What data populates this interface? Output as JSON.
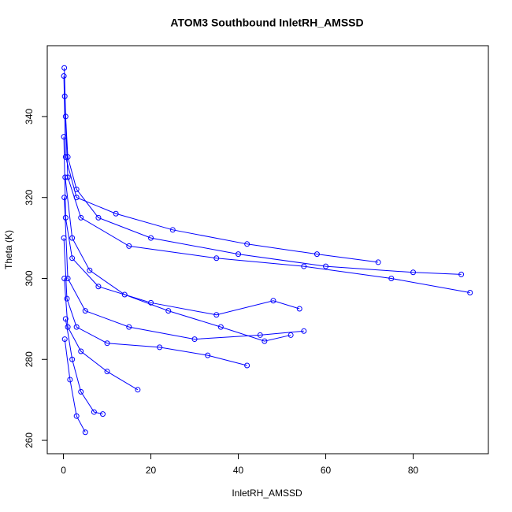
{
  "chart_data": {
    "type": "scatter-line",
    "title": "ATOM3 Southbound InletRH_AMSSD",
    "x_label": "InletRH_AMSSD",
    "y_label": "Theta (K)",
    "xlim": [
      -3.7,
      97.2
    ],
    "ylim": [
      256.7,
      357.5
    ],
    "xticks": [
      0,
      20,
      40,
      60,
      80
    ],
    "yticks": [
      260,
      280,
      300,
      320,
      340
    ],
    "series": [
      {
        "color": "#0000ff",
        "x": [
          0.2,
          0.5,
          1,
          3,
          8,
          20,
          40,
          60,
          80,
          91
        ],
        "values": [
          352,
          340,
          330,
          322,
          315,
          310,
          306,
          303,
          301.5,
          301
        ]
      },
      {
        "color": "#0000ff",
        "x": [
          0.3,
          1,
          4,
          15,
          35,
          55,
          75,
          93
        ],
        "values": [
          345,
          325,
          315,
          308,
          305,
          303,
          300,
          296.5
        ]
      },
      {
        "color": "#0000ff",
        "x": [
          0.1,
          0.5,
          2,
          8,
          20,
          35,
          48,
          54
        ],
        "values": [
          335,
          315,
          305,
          298,
          294,
          291,
          294.5,
          292.5
        ]
      },
      {
        "color": "#0000ff",
        "x": [
          0.2,
          1,
          5,
          15,
          30,
          45,
          55
        ],
        "values": [
          320,
          300,
          292,
          288,
          285,
          286,
          287
        ]
      },
      {
        "color": "#0000ff",
        "x": [
          0.1,
          0.8,
          3,
          10,
          22,
          33,
          42
        ],
        "values": [
          310,
          295,
          288,
          284,
          283,
          281,
          278.5
        ]
      },
      {
        "color": "#0000ff",
        "x": [
          0.2,
          1,
          4,
          10,
          17
        ],
        "values": [
          300,
          288,
          282,
          277,
          272.5
        ]
      },
      {
        "color": "#0000ff",
        "x": [
          0.5,
          2,
          4,
          7,
          9
        ],
        "values": [
          290,
          280,
          272,
          267,
          266.5
        ]
      },
      {
        "color": "#0000ff",
        "x": [
          0.3,
          1.5,
          3,
          5
        ],
        "values": [
          285,
          275,
          266,
          262
        ]
      },
      {
        "color": "#0000ff",
        "x": [
          0.1,
          0.5,
          3,
          12,
          25,
          42,
          58,
          72
        ],
        "values": [
          350,
          330,
          320,
          316,
          312,
          308.5,
          306,
          304
        ]
      },
      {
        "color": "#0000ff",
        "x": [
          0.4,
          2,
          6,
          14,
          24,
          36,
          46,
          52
        ],
        "values": [
          325,
          310,
          302,
          296,
          292,
          288,
          284.5,
          286
        ]
      }
    ]
  }
}
